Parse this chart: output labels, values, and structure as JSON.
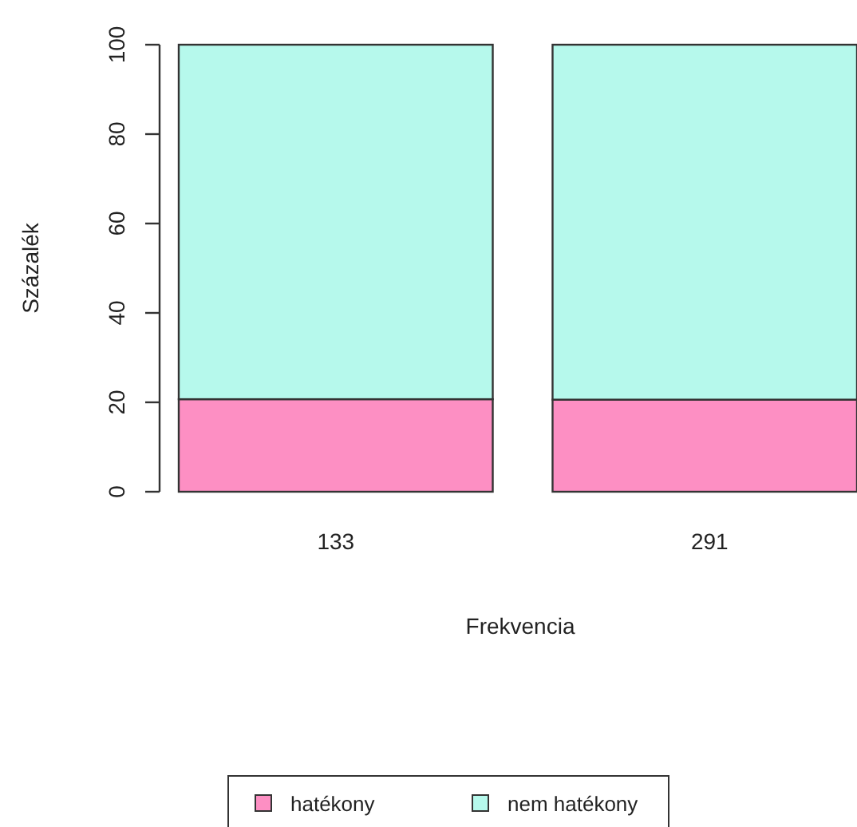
{
  "chart_data": {
    "type": "bar",
    "stacked": true,
    "xlabel": "Frekvencia",
    "ylabel": "Százalék",
    "categories": [
      "133",
      "291"
    ],
    "series": [
      {
        "name": "hatékony",
        "color": "#fd8fc3",
        "values": [
          20.7,
          20.6
        ]
      },
      {
        "name": "nem hatékony",
        "color": "#b6f9ec",
        "values": [
          79.3,
          79.4
        ]
      }
    ],
    "ylim": [
      0,
      100
    ],
    "yticks": [
      0,
      20,
      40,
      60,
      80,
      100
    ],
    "legend": "bottom"
  }
}
